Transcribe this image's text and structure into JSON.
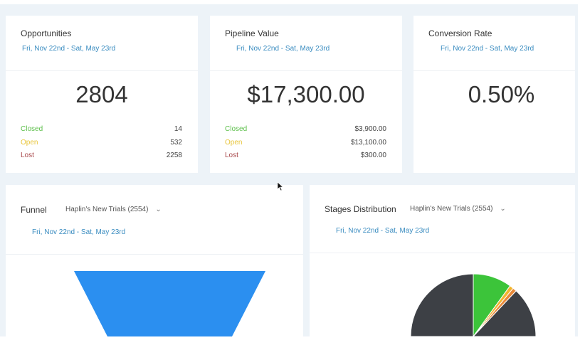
{
  "date_range": "Fri, Nov 22nd - Sat, May 23rd",
  "cards": [
    {
      "title": "Opportunities",
      "value": "2804",
      "rows": [
        {
          "label": "Closed",
          "value": "14"
        },
        {
          "label": "Open",
          "value": "532"
        },
        {
          "label": "Lost",
          "value": "2258"
        }
      ]
    },
    {
      "title": "Pipeline Value",
      "value": "$17,300.00",
      "rows": [
        {
          "label": "Closed",
          "value": "$3,900.00"
        },
        {
          "label": "Open",
          "value": "$13,100.00"
        },
        {
          "label": "Lost",
          "value": "$300.00"
        }
      ]
    },
    {
      "title": "Conversion Rate",
      "value": "0.50%"
    }
  ],
  "funnel": {
    "title": "Funnel",
    "pipeline": "Haplin's New Trials (2554)",
    "color": "#2b8ff0"
  },
  "stages": {
    "title": "Stages Distribution",
    "pipeline": "Haplin's New Trials (2554)"
  },
  "colors": {
    "closed": "#5cbf4a",
    "open": "#e8c53a",
    "lost": "#a8474a"
  },
  "chart_data": {
    "type": "pie",
    "slices": [
      {
        "value": 10,
        "color": "#3cc43a"
      },
      {
        "value": 1,
        "color": "#f2b52e"
      },
      {
        "value": 1,
        "color": "#e8893a"
      },
      {
        "value": 88,
        "color": "#3d4045"
      }
    ]
  }
}
